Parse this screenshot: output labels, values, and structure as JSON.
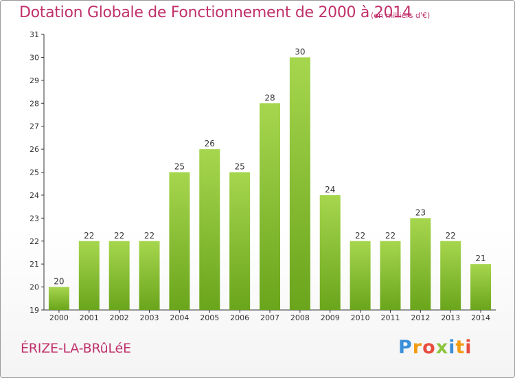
{
  "title": "Dotation Globale de Fonctionnement de 2000 à 2014",
  "subtitle": "(en milliers d'€)",
  "commune": "ÉRIZE-LA-BRûLéE",
  "logo": {
    "letters": [
      "P",
      "r",
      "o",
      "x",
      "i",
      "t",
      "i"
    ],
    "colors": [
      "#3a8fd9",
      "#f39c12",
      "#e74c3c",
      "#8cc63f",
      "#3a8fd9",
      "#f39c12",
      "#e74c3c"
    ]
  },
  "colors": {
    "title": "#c0306a",
    "bar_top": "#a6d64e",
    "bar_bottom": "#6aa51c",
    "axis": "#333333"
  },
  "chart_data": {
    "type": "bar",
    "title": "Dotation Globale de Fonctionnement de 2000 à 2014",
    "subtitle": "(en milliers d'€)",
    "categories": [
      "2000",
      "2001",
      "2002",
      "2003",
      "2004",
      "2005",
      "2006",
      "2007",
      "2008",
      "2009",
      "2010",
      "2011",
      "2012",
      "2013",
      "2014"
    ],
    "values": [
      20,
      22,
      22,
      22,
      25,
      26,
      25,
      28,
      30,
      24,
      22,
      22,
      23,
      22,
      21
    ],
    "ylim": [
      19,
      31
    ],
    "yticks": [
      19,
      20,
      21,
      22,
      23,
      24,
      25,
      26,
      27,
      28,
      29,
      30,
      31
    ],
    "grid": false,
    "data_labels": true
  }
}
